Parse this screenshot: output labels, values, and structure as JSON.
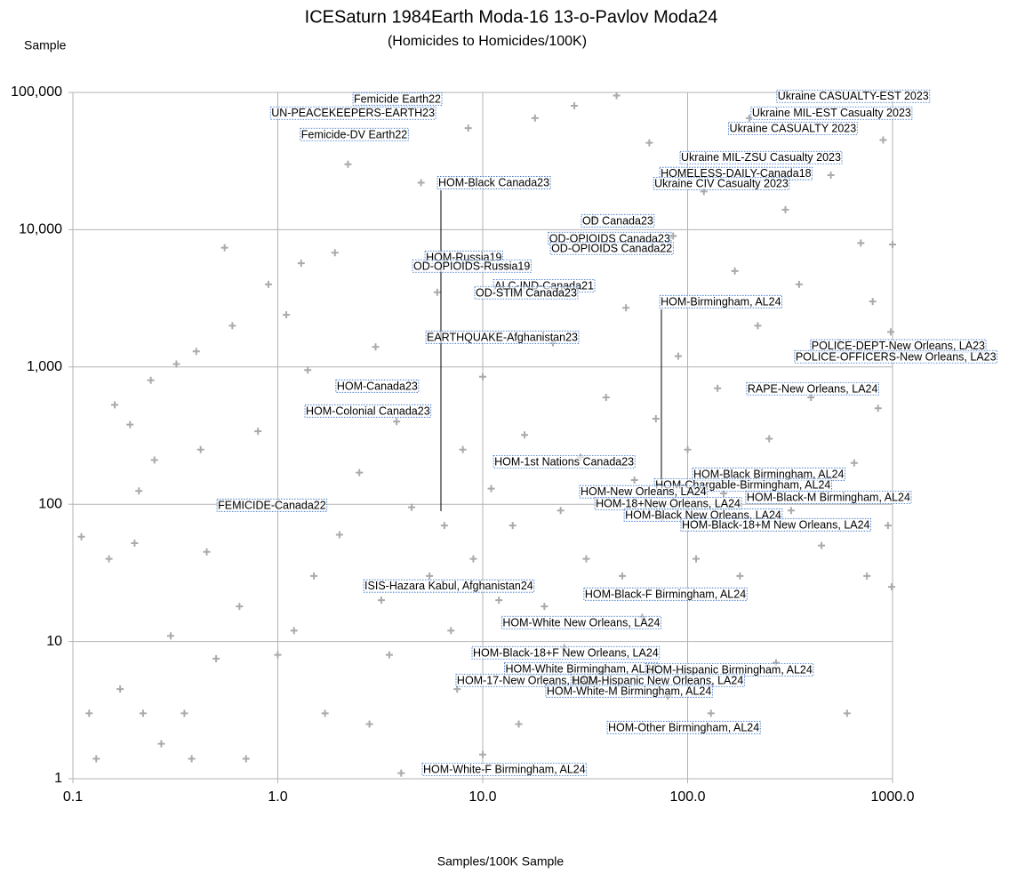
{
  "chart_data": {
    "type": "scatter",
    "title": "ICESaturn 1984Earth Moda-16 13-o-Pavlov Moda24",
    "subtitle": "(Homicides to Homicides/100K)",
    "y_label": "Sample",
    "x_label": "Samples/100K Sample",
    "log_x": true,
    "log_y": true,
    "grid": true,
    "color": "#aaaaaa",
    "xlim": [
      0.1,
      1000
    ],
    "ylim": [
      1,
      100000
    ],
    "xticks": [
      0.1,
      {
        "value": 1,
        "label": "1.0"
      },
      {
        "value": 10,
        "label": "10.0"
      },
      {
        "value": 100,
        "label": "100.0"
      },
      {
        "value": 1000,
        "label": "1000.0"
      }
    ],
    "yticks": [
      1,
      10,
      100,
      {
        "value": 1000,
        "label": "1,000"
      },
      {
        "value": 10000,
        "label": "10,000"
      },
      {
        "value": 100000,
        "label": "100,000"
      }
    ],
    "x": [
      0.11,
      0.12,
      0.13,
      0.15,
      0.16,
      0.17,
      0.19,
      0.2,
      0.21,
      0.22,
      0.24,
      0.25,
      0.27,
      0.3,
      0.32,
      0.35,
      0.38,
      0.4,
      0.42,
      0.45,
      0.5,
      0.55,
      0.6,
      0.65,
      0.7,
      0.8,
      0.9,
      1.0,
      1.1,
      1.2,
      1.3,
      1.4,
      1.5,
      1.7,
      1.9,
      2.0,
      2.2,
      2.5,
      2.8,
      3.0,
      3.2,
      3.5,
      3.8,
      4.0,
      4.5,
      5.0,
      5.5,
      6,
      6.5,
      7,
      7.5,
      8,
      8.5,
      9,
      10,
      10,
      11,
      12,
      13,
      14,
      15,
      16,
      18,
      20,
      22,
      24,
      25,
      28,
      30,
      32,
      35,
      38,
      40,
      45,
      48,
      50,
      55,
      60,
      65,
      70,
      75,
      80,
      85,
      90,
      100,
      110,
      120,
      130,
      140,
      150,
      170,
      180,
      200,
      220,
      250,
      270,
      300,
      320,
      350,
      400,
      450,
      500,
      550,
      600,
      650,
      700,
      750,
      800,
      850,
      900,
      950,
      1000,
      990,
      980
    ],
    "y": [
      58,
      3,
      1.4,
      40,
      530,
      4.5,
      380,
      52,
      125,
      3,
      800,
      210,
      1.8,
      11,
      1050,
      3,
      1.4,
      1300,
      250,
      45,
      7.5,
      7400,
      2000,
      18,
      1.4,
      340,
      4000,
      8,
      2400,
      12,
      5700,
      950,
      30,
      3,
      6800,
      60,
      30000,
      170,
      2.5,
      1400,
      20,
      8,
      400,
      1.1,
      95,
      22000,
      30,
      3500,
      70,
      12,
      4.5,
      250,
      55000,
      40,
      1.5,
      850,
      130,
      20,
      5500,
      70,
      2.5,
      320,
      65000,
      18,
      1500,
      90,
      9,
      80000,
      220,
      40,
      12000,
      6,
      600,
      95000,
      30,
      2700,
      150,
      15,
      43000,
      420,
      80,
      4,
      9000,
      1200,
      250,
      40,
      19000,
      3,
      700,
      120,
      5000,
      30,
      65000,
      2000,
      300,
      7,
      14000,
      90,
      4000,
      600,
      50,
      25000,
      1500,
      3,
      200,
      8000,
      30,
      3000,
      500,
      45000,
      70,
      7800,
      25,
      1800
    ],
    "annotations": [
      {
        "text": "Femicide Earth22",
        "x": 2.35,
        "y": 88700
      },
      {
        "text": "UN-PEACEKEEPERS-EARTH23",
        "x": 0.93,
        "y": 70000
      },
      {
        "text": "Femicide-DV Earth22",
        "x": 1.3,
        "y": 48900
      },
      {
        "text": "Ukraine CASUALTY-EST 2023",
        "x": 275,
        "y": 92900
      },
      {
        "text": "Ukraine MIL-EST Casualty 2023",
        "x": 206,
        "y": 70000
      },
      {
        "text": "Ukraine CASUALTY 2023",
        "x": 160,
        "y": 54200
      },
      {
        "text": "Ukraine MIL-ZSU Casualty 2023",
        "x": 92.8,
        "y": 33200
      },
      {
        "text": "HOMELESS-DAILY-Canada18",
        "x": 73.8,
        "y": 25400
      },
      {
        "text": "Ukraine CIV Casualty 2023",
        "x": 68.8,
        "y": 21500
      },
      {
        "text": "HOM-Black Canada23",
        "x": 6.07,
        "y": 21800
      },
      {
        "text": "OD Canada23",
        "x": 30.6,
        "y": 11500
      },
      {
        "text": "OD-OPIOIDS Canada23",
        "x": 21.1,
        "y": 8540
      },
      {
        "text": "OD-OPIOIDS Canada22",
        "x": 21.6,
        "y": 7250
      },
      {
        "text": "HOM-Russia19",
        "x": 5.28,
        "y": 6240
      },
      {
        "text": "OD-OPIOIDS-Russia19",
        "x": 4.59,
        "y": 5380
      },
      {
        "text": "ALC-IND-Canada21",
        "x": 11.4,
        "y": 3870
      },
      {
        "text": "OD-STIM Canada23",
        "x": 9.23,
        "y": 3440
      },
      {
        "text": "HOM-Birmingham, AL24",
        "x": 73.8,
        "y": 2960
      },
      {
        "text": "EARTHQUAKE-Afghanistan23",
        "x": 5.33,
        "y": 1630
      },
      {
        "text": "POLICE-DEPT-New Orleans, LA23",
        "x": 402,
        "y": 1410
      },
      {
        "text": "POLICE-OFFICERS-New Orleans, LA23",
        "x": 336,
        "y": 1175
      },
      {
        "text": "HOM-Canada23",
        "x": 1.94,
        "y": 718
      },
      {
        "text": "RAPE-New Orleans, LA24",
        "x": 196,
        "y": 687
      },
      {
        "text": "HOM-Colonial Canada23",
        "x": 1.37,
        "y": 473
      },
      {
        "text": "HOM-1st Nations Canada23",
        "x": 11.4,
        "y": 202
      },
      {
        "text": "HOM-Black Birmingham, AL24",
        "x": 106.7,
        "y": 164
      },
      {
        "text": "HOM-Chargable-Birmingham, AL24",
        "x": 69.5,
        "y": 137
      },
      {
        "text": "HOM-New Orleans, LA24",
        "x": 30,
        "y": 122
      },
      {
        "text": "HOM-Black-M Birmingham, AL24",
        "x": 194,
        "y": 111
      },
      {
        "text": "FEMICIDE-Canada22",
        "x": 0.51,
        "y": 97.3
      },
      {
        "text": "HOM-18+New Orleans, LA24",
        "x": 35.6,
        "y": 100
      },
      {
        "text": "HOM-Black New Orleans, LA24",
        "x": 49.5,
        "y": 82.6
      },
      {
        "text": "HOM-Black-18+M New Orleans, LA24",
        "x": 93.7,
        "y": 70.1
      },
      {
        "text": "ISIS-Hazara Kabul, Afghanistan24",
        "x": 2.65,
        "y": 25.1
      },
      {
        "text": "HOM-Black-F Birmingham, AL24",
        "x": 31.5,
        "y": 21.9
      },
      {
        "text": "HOM-White New Orleans, LA24",
        "x": 12.5,
        "y": 13.6
      },
      {
        "text": "HOM-Black-18+F New Orleans, LA24",
        "x": 8.96,
        "y": 8.19
      },
      {
        "text": "HOM-White Birmingham, AL24",
        "x": 12.9,
        "y": 6.26
      },
      {
        "text": "HOM-Hispanic Birmingham, AL24",
        "x": 62.8,
        "y": 6.16
      },
      {
        "text": "HOM-17-New Orleans, LA24",
        "x": 7.48,
        "y": 5.16
      },
      {
        "text": "HOM-Hispanic New Orleans, LA24",
        "x": 27.2,
        "y": 5.16
      },
      {
        "text": "HOM-White-M Birmingham, AL24",
        "x": 20.5,
        "y": 4.31
      },
      {
        "text": "HOM-Other Birmingham, AL24",
        "x": 40.9,
        "y": 2.34
      },
      {
        "text": "HOM-White-F Birmingham, AL24",
        "x": 5.12,
        "y": 1.16
      }
    ]
  }
}
